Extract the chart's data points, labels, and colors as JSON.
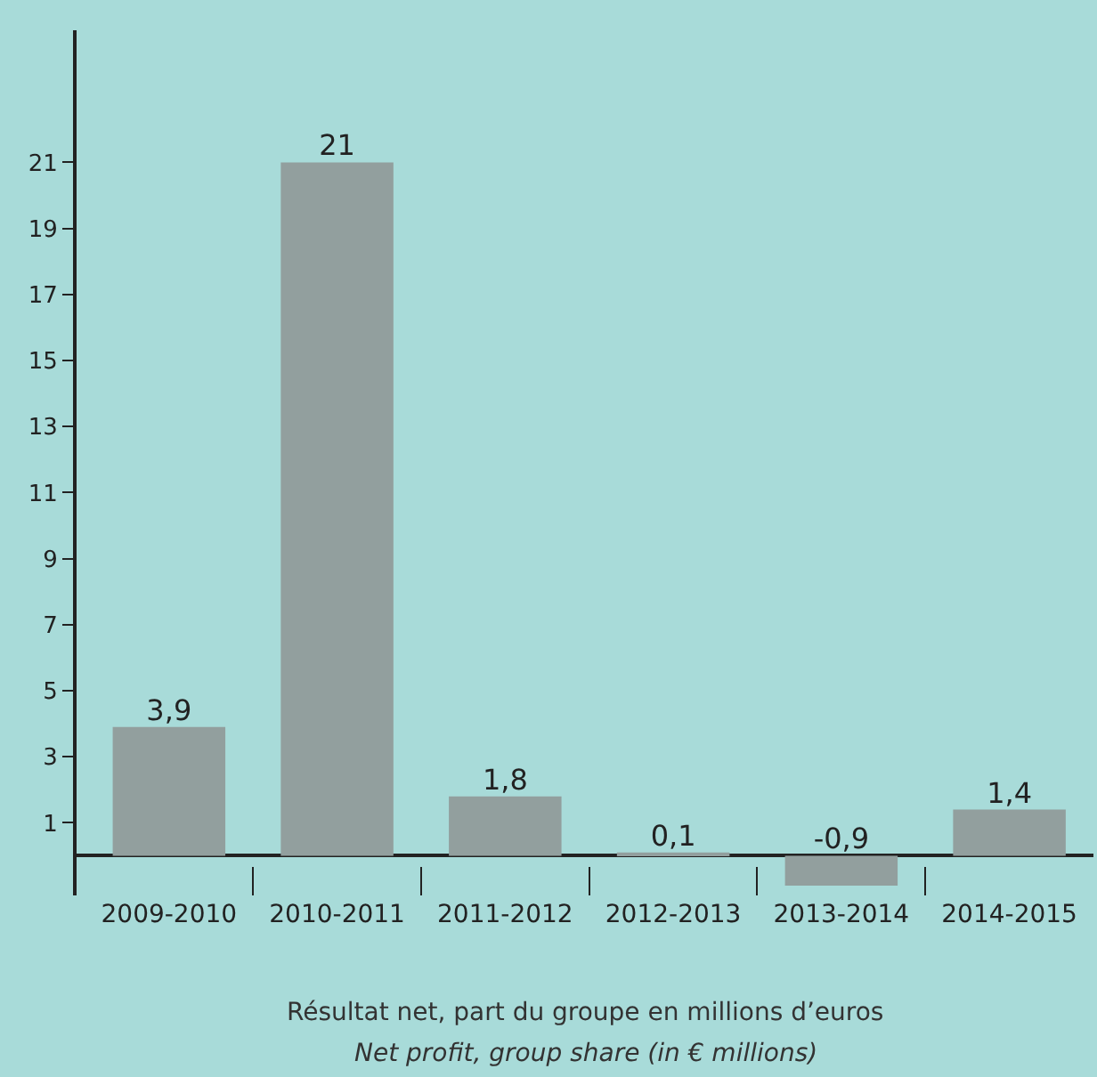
{
  "chart_data": {
    "type": "bar",
    "categories": [
      "2009-2010",
      "2010-2011",
      "2011-2012",
      "2012-2013",
      "2013-2014",
      "2014-2015"
    ],
    "values": [
      3.9,
      21,
      1.8,
      0.1,
      -0.9,
      1.4
    ],
    "value_labels": [
      "3,9",
      "21",
      "1,8",
      "0,1",
      "-0,9",
      "1,4"
    ],
    "color": "#929f9e",
    "ylim": [
      -1.2,
      25
    ],
    "yticks": [
      1,
      3,
      5,
      7,
      9,
      11,
      13,
      15,
      17,
      19,
      21
    ],
    "grid": false,
    "tick_labels": "xy",
    "annotations": [
      "Résultat net, part du groupe en millions d’euros",
      "Net profit, group share (in € millions)"
    ]
  }
}
